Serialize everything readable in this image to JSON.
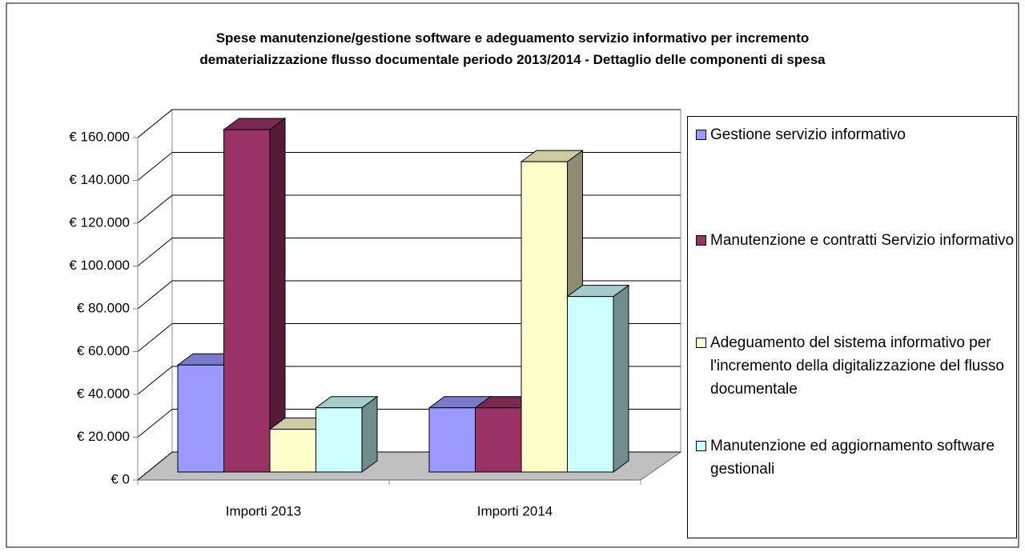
{
  "chart_data": {
    "type": "bar3d",
    "title": "Spese manutenzione/gestione software e adeguamento servizio informativo per incremento dematerializzazione flusso documentale periodo 2013/2014 - Dettaglio delle componenti di spesa",
    "categories": [
      "Importi 2013",
      "Importi 2014"
    ],
    "series": [
      {
        "name": "Gestione servizio informativo",
        "color": "#9999ff",
        "values": [
          50000,
          30000
        ]
      },
      {
        "name": "Manutenzione e contratti Servizio informativo",
        "color": "#993366",
        "values": [
          160000,
          30000
        ]
      },
      {
        "name": "Adeguamento del sistema informativo per l'incremento della digitalizzazione del flusso documentale",
        "color": "#ffffcc",
        "values": [
          20000,
          145000
        ]
      },
      {
        "name": "Manutenzione ed aggiornamento software gestionali",
        "color": "#ccffff",
        "values": [
          30000,
          82000
        ]
      }
    ],
    "ylim": [
      0,
      160000
    ],
    "yticks": [
      {
        "value": 0,
        "label": "€ 0"
      },
      {
        "value": 20000,
        "label": "€ 20.000"
      },
      {
        "value": 40000,
        "label": "€ 40.000"
      },
      {
        "value": 60000,
        "label": "€ 60.000"
      },
      {
        "value": 80000,
        "label": "€ 80.000"
      },
      {
        "value": 100000,
        "label": "€ 100.000"
      },
      {
        "value": 120000,
        "label": "€ 120.000"
      },
      {
        "value": 140000,
        "label": "€ 140.000"
      },
      {
        "value": 160000,
        "label": "€ 160.000"
      }
    ],
    "grid": true,
    "legend": "right"
  }
}
